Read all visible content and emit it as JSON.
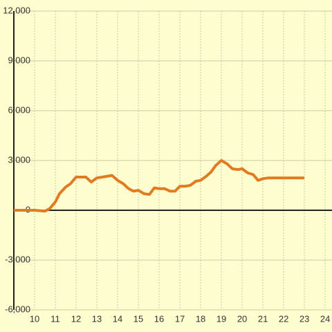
{
  "chart_data": {
    "type": "line",
    "x": [
      9,
      10,
      10.5,
      10.73,
      11,
      11.2,
      11.5,
      11.73,
      12,
      12.47,
      12.73,
      13,
      13.27,
      13.73,
      14,
      14.27,
      14.53,
      14.77,
      15,
      15.27,
      15.53,
      15.77,
      16,
      16.27,
      16.53,
      16.77,
      17,
      17.27,
      17.5,
      17.77,
      18,
      18.27,
      18.5,
      18.73,
      19,
      19.27,
      19.53,
      19.8,
      20,
      20.27,
      20.53,
      20.77,
      21,
      21.27,
      23
    ],
    "series": [
      {
        "color": "#e07b22",
        "values": [
          0,
          0,
          -50,
          100,
          500,
          1000,
          1400,
          1600,
          2000,
          2000,
          1700,
          1950,
          2000,
          2100,
          1800,
          1600,
          1300,
          1150,
          1200,
          1000,
          950,
          1350,
          1300,
          1300,
          1150,
          1150,
          1450,
          1450,
          1500,
          1750,
          1800,
          2050,
          2300,
          2700,
          3000,
          2800,
          2500,
          2450,
          2500,
          2250,
          2150,
          1800,
          1900,
          1950,
          1950
        ]
      }
    ],
    "xlim": [
      9,
      24.33
    ],
    "xticks": [
      10,
      11,
      12,
      13,
      14,
      15,
      16,
      17,
      18,
      19,
      20,
      21,
      22,
      23,
      24
    ],
    "ylim": [
      -6000,
      12000
    ],
    "yticks": [
      {
        "value": -6000,
        "label": "-6,000"
      },
      {
        "value": -3000,
        "label": "-3,000"
      },
      0,
      {
        "value": 3000,
        "label": "3,000"
      },
      {
        "value": 6000,
        "label": "6,000"
      },
      {
        "value": 9000,
        "label": "9,000"
      },
      {
        "value": 12000,
        "label": "12,000"
      }
    ],
    "grid": true
  }
}
